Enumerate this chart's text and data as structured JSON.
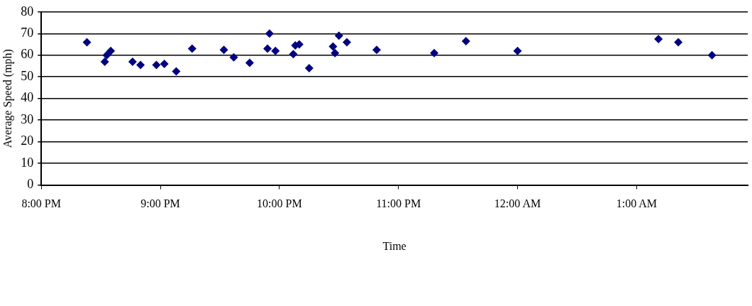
{
  "chart_data": {
    "type": "scatter",
    "xlabel": "Time",
    "ylabel": "Average Speed (mph)",
    "x": [
      "2000-01-01T20:23",
      "2000-01-01T20:32",
      "2000-01-01T20:33",
      "2000-01-01T20:35",
      "2000-01-01T20:46",
      "2000-01-01T20:50",
      "2000-01-01T20:58",
      "2000-01-01T21:02",
      "2000-01-01T21:08",
      "2000-01-01T21:16",
      "2000-01-01T21:32",
      "2000-01-01T21:37",
      "2000-01-01T21:45",
      "2000-01-01T21:55",
      "2000-01-01T21:54",
      "2000-01-01T21:58",
      "2000-01-01T22:07",
      "2000-01-01T22:08",
      "2000-01-01T22:10",
      "2000-01-01T22:15",
      "2000-01-01T22:27",
      "2000-01-01T22:28",
      "2000-01-01T22:30",
      "2000-01-01T22:34",
      "2000-01-01T22:49",
      "2000-01-01T23:18",
      "2000-01-01T23:34",
      "2000-01-02T00:00",
      "2000-01-02T01:11",
      "2000-01-02T01:21",
      "2000-01-02T01:38"
    ],
    "series": [
      {
        "color": "#000080",
        "values": [
          66,
          57,
          60,
          62,
          57,
          55.5,
          55.5,
          56,
          52.5,
          63,
          62.5,
          59,
          56.5,
          70,
          63,
          62,
          60.5,
          64.5,
          65,
          54,
          64,
          61,
          69,
          66,
          62.5,
          61,
          66.5,
          62,
          67.5,
          66,
          60
        ]
      }
    ],
    "xlim": [
      "2000-01-01T20:00",
      "2000-01-02T01:56"
    ],
    "xticks": [
      {
        "value": "2000-01-01T20:00",
        "label": "8:00 PM"
      },
      {
        "value": "2000-01-01T21:00",
        "label": "9:00 PM"
      },
      {
        "value": "2000-01-01T22:00",
        "label": "10:00 PM"
      },
      {
        "value": "2000-01-01T23:00",
        "label": "11:00 PM"
      },
      {
        "value": "2000-01-02T00:00",
        "label": "12:00 AM"
      },
      {
        "value": "2000-01-02T01:00",
        "label": "1:00 AM"
      }
    ],
    "ylim": [
      0,
      80
    ],
    "yticks": [
      0,
      10,
      20,
      30,
      40,
      50,
      60,
      70,
      80
    ],
    "grid": "y",
    "marker": "diamond",
    "legend": false
  }
}
